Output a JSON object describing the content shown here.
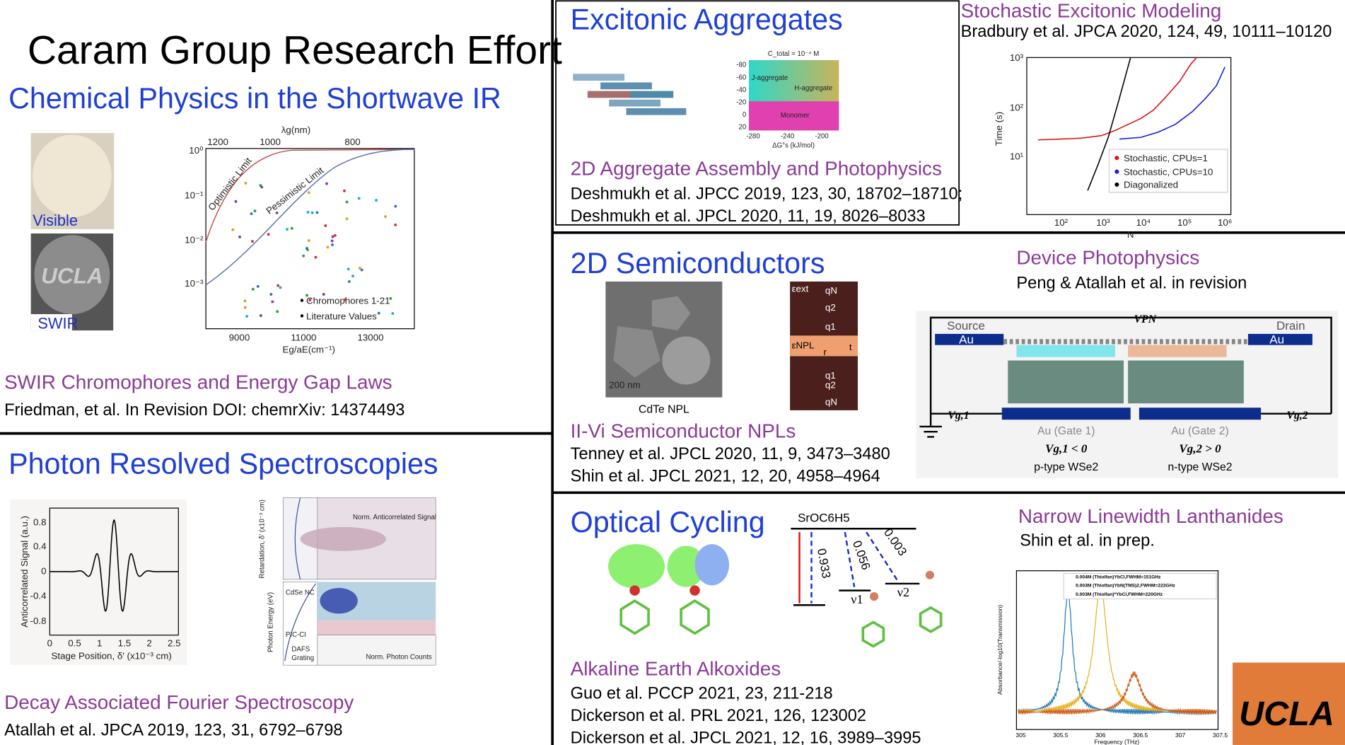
{
  "title": "Caram Group Research Effort",
  "swir": {
    "heading": "Chemical Physics in the Shortwave IR",
    "subtitle": "SWIR Chromophores and Energy Gap Laws",
    "citation": "Friedman, et al. In Revision DOI: chemrXiv: 14374493",
    "photo_labels": [
      "Visible",
      "SWIR"
    ],
    "figure": {
      "top_axis_label": "λg(nm)",
      "top_ticks": [
        "1200",
        "1000",
        "800"
      ],
      "y_ticks": [
        "10⁰",
        "10⁻¹",
        "10⁻²",
        "10⁻³"
      ],
      "x_ticks": [
        "9000",
        "11000",
        "13000"
      ],
      "x_label": "Eg/aE(cm⁻¹)",
      "curve_labels": [
        "Optimistic Limit",
        "Pessimistic Limit"
      ],
      "legend": [
        "Chromophores 1-21",
        "Literature Values"
      ]
    }
  },
  "photon": {
    "heading": "Photon Resolved Spectroscopies",
    "subtitle": "Decay Associated Fourier Spectroscopy",
    "citation": "Atallah et al. JPCA 2019, 123, 31, 6792–6798",
    "figure": {
      "y_label": "Anticorrelated Signal (a.u.)",
      "y_ticks": [
        "0.8",
        "0.4",
        "0",
        "-0.4",
        "-0.8"
      ],
      "x_ticks": [
        "0",
        "0.5",
        "1",
        "1.5",
        "2",
        "2.5"
      ],
      "x_label": "Stage Position, δ' (x10⁻³ cm)",
      "map_labels": [
        "Norm. Anticorrelated Signal",
        "CdSe NC",
        "PIC-CI",
        "DAFS",
        "Grating",
        "Norm. Photon Counts",
        "Photon Energy (eV)",
        "Retardation, δ' (x10⁻³ cm)"
      ]
    }
  },
  "aggregates": {
    "heading": "Excitonic Aggregates",
    "subtitle": "2D Aggregate Assembly and Photophysics",
    "citations": [
      "Deshmukh et al. JPCC 2019, 123, 30, 18702–18710;",
      "Deshmukh et al. JPCL 2020, 11, 19, 8026–8033"
    ],
    "map_labels": [
      "J-aggregate",
      "H-aggregate",
      "Monomer",
      "C_total = 10⁻⁴ M",
      "ΔG°s (kJ/mol)"
    ],
    "map_y_ticks": [
      "-80",
      "-60",
      "-40",
      "-20",
      "0",
      "20"
    ],
    "map_x_ticks": [
      "-280",
      "-240",
      "-200"
    ]
  },
  "stochastic": {
    "subtitle": "Stochastic Excitonic Modeling",
    "citation": "Bradbury et al. JPCA 2020, 124, 49, 10111–10120",
    "figure": {
      "y_label": "Time (s)",
      "x_label": "N",
      "y_ticks": [
        "10³",
        "10²",
        "10¹"
      ],
      "x_ticks": [
        "10²",
        "10³",
        "10⁴",
        "10⁵",
        "10⁶"
      ],
      "legend": [
        "Stochastic, CPUs=1",
        "Stochastic, CPUs=10",
        "Diagonalized"
      ]
    }
  },
  "semiconductors": {
    "heading": "2D Semiconductors",
    "subtitle": "II-Vi Semiconductor NPLs",
    "citations": [
      "Tenney et al. JPCL 2020, 11, 9, 3473–3480",
      "Shin et al. JPCL 2021, 12, 20, 4958–4964"
    ],
    "image_labels": [
      "200 nm",
      "CdTe NPL"
    ],
    "diagram_labels": [
      "εext",
      "qN",
      "q2",
      "q1",
      "εNPL",
      "r",
      "t",
      "q1",
      "q2",
      "qN"
    ]
  },
  "device": {
    "subtitle": "Device Photophysics",
    "citation": "Peng & Atallah et al. in revision",
    "labels": [
      "Source",
      "Drain",
      "Au",
      "Au",
      "VPN",
      "Vg,1",
      "Vg,2",
      "Au (Gate 1)",
      "Au (Gate 2)",
      "Vg,1 < 0",
      "Vg,2 > 0",
      "p-type WSe2",
      "n-type WSe2"
    ]
  },
  "cycling": {
    "heading": "Optical Cycling",
    "subtitle": "Alkaline Earth Alkoxides",
    "citations": [
      "Guo et al. PCCP 2021, 23, 211-218",
      "Dickerson et al. PRL 2021, 126, 123002",
      "Dickerson et al. JPCL 2021, 12, 16, 3989–3995"
    ],
    "diagram_labels": [
      "SrOC6H5",
      "0.933",
      "0.056",
      "0.003",
      "ν1",
      "ν2"
    ]
  },
  "lanthanides": {
    "subtitle": "Narrow Linewidth Lanthanides",
    "citation": "Shin et al. in prep.",
    "figure": {
      "legend": [
        "0.004M (Thiolfan)YbCl,FWHM=151GHz",
        "0.003M (Thiolfan)YbN(TMS)2,FWHM=223GHz",
        "0.003M (Thiolfan)*YbCl,FWHM=220GHz"
      ],
      "x_ticks": [
        "305",
        "305.5",
        "306",
        "306.5",
        "307",
        "307.5"
      ],
      "x_label": "Frequency (THz)",
      "y_label": "Absorbance/-log10(Transmission)"
    }
  },
  "logo": "UCLA"
}
